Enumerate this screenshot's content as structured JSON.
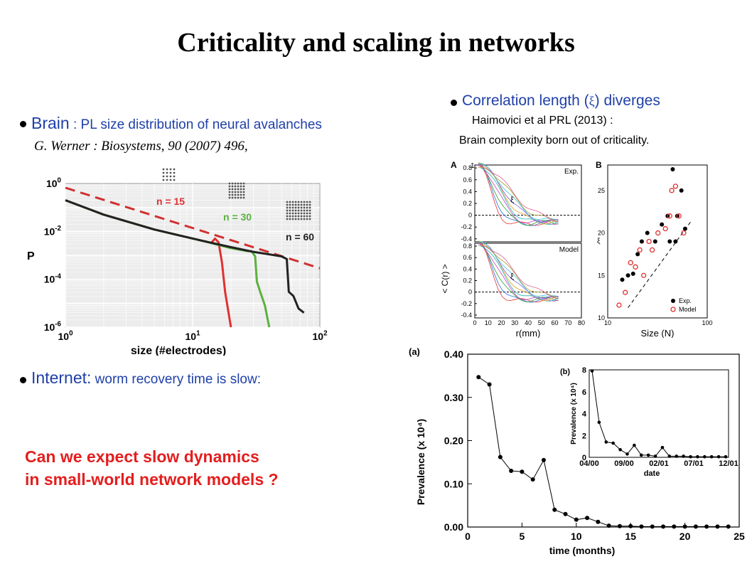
{
  "slide": {
    "title": "Criticality and scaling in networks",
    "brain": {
      "label": "Brain",
      "separator": " :  ",
      "text": "PL size distribution of neural avalanches",
      "citation": "G. Werner : Biosystems, 90 (2007) 496,"
    },
    "correlation": {
      "text_before": "Correlation length (",
      "symbol": "ξ",
      "text_after": ") diverges",
      "citation_line1": "Haimovici et al  PRL (2013) :",
      "citation_line2": "Brain complexity born out of criticality."
    },
    "internet": {
      "label": "Internet:",
      "text": " worm recovery time is slow:"
    },
    "question_line1": "Can we expect slow dynamics",
    "question_line2": "in small-world network models ?",
    "colors": {
      "bullet_text": "#1f3fa8",
      "question": "#e41e1e",
      "title": "#000000"
    }
  },
  "chart_data": [
    {
      "type": "line",
      "id": "avalanche-chart",
      "xlabel": "size (#electrodes)",
      "ylabel": "P",
      "x_scale": "log",
      "y_scale": "log",
      "xlim": [
        1,
        100
      ],
      "ylim": [
        1e-06,
        1
      ],
      "x_ticks": [
        {
          "base": "10",
          "exp": "0"
        },
        {
          "base": "10",
          "exp": "1"
        },
        {
          "base": "10",
          "exp": "2"
        }
      ],
      "y_ticks": [
        {
          "base": "10",
          "exp": "0"
        },
        {
          "base": "10",
          "exp": "-2"
        },
        {
          "base": "10",
          "exp": "-4"
        },
        {
          "base": "10",
          "exp": "-6"
        }
      ],
      "grid": true,
      "series": [
        {
          "name": "n = 15",
          "color": "#e03030",
          "points": [
            [
              1,
              0.2
            ],
            [
              2,
              0.05
            ],
            [
              5,
              0.012
            ],
            [
              12,
              0.004
            ],
            [
              14,
              0.0033
            ],
            [
              15,
              0.005
            ],
            [
              16,
              0.0035
            ],
            [
              17,
              0.0005
            ],
            [
              18,
              3e-05
            ],
            [
              20,
              1e-06
            ]
          ]
        },
        {
          "name": "n = 30",
          "color": "#5cb040",
          "points": [
            [
              1,
              0.2
            ],
            [
              2,
              0.05
            ],
            [
              5,
              0.012
            ],
            [
              12,
              0.004
            ],
            [
              20,
              0.002
            ],
            [
              27,
              0.0015
            ],
            [
              29,
              0.0015
            ],
            [
              31,
              0.0009
            ],
            [
              32,
              8e-05
            ],
            [
              34,
              3e-05
            ],
            [
              37,
              8e-06
            ],
            [
              40,
              1e-06
            ]
          ]
        },
        {
          "name": "n = 60",
          "color": "#222222",
          "points": [
            [
              1,
              0.2
            ],
            [
              2,
              0.05
            ],
            [
              5,
              0.012
            ],
            [
              12,
              0.004
            ],
            [
              20,
              0.0022
            ],
            [
              30,
              0.0014
            ],
            [
              40,
              0.0011
            ],
            [
              50,
              0.0009
            ],
            [
              55,
              0.0007
            ],
            [
              57,
              3e-05
            ],
            [
              62,
              2e-05
            ],
            [
              68,
              6e-06
            ],
            [
              75,
              4e-06
            ]
          ]
        }
      ],
      "reference_line": {
        "style": "dashed",
        "color": "#d03030",
        "points": [
          [
            1,
            1
          ],
          [
            100,
            0.0005
          ]
        ]
      },
      "annotations": [
        "n = 15",
        "n = 30",
        "n = 60"
      ],
      "insets": [
        "n = 15 grid",
        "n = 30 grid",
        "n = 60 grid"
      ]
    },
    {
      "type": "line",
      "id": "correlation-chart",
      "panel_a": "A",
      "panel_b": "B",
      "xlabel": "r(mm)",
      "ylabel": "< C(r) >",
      "xlim": [
        0,
        80
      ],
      "ylim": [
        -0.4,
        1.0
      ],
      "x_ticks": [
        "0",
        "10",
        "20",
        "30",
        "40",
        "50",
        "60",
        "70",
        "80"
      ],
      "y_ticks_top": [
        "0.8",
        "0.6",
        "0.4",
        "0.2",
        "0",
        "-0.2",
        "-0.4"
      ],
      "y_ticks_bottom": [
        "0.8",
        "0.6",
        "0.4",
        "0.2",
        "0",
        "-0.2",
        "-0.4"
      ],
      "top_y_extra": "1",
      "legend_top": "Exp.",
      "legend_bottom": "Model",
      "xi_label": "ξ",
      "b_xlabel": "Size (N)",
      "b_ylabel": "ξ",
      "b_x_ticks": [
        "10",
        "100"
      ],
      "b_y_ticks": [
        "10",
        "15",
        "20",
        "25"
      ],
      "b_xlim": [
        10,
        100
      ],
      "b_ylim": [
        10,
        28
      ],
      "b_legend": [
        "Exp.",
        "Model"
      ],
      "b_exp": [
        [
          14,
          14.5
        ],
        [
          16,
          15
        ],
        [
          18,
          15.2
        ],
        [
          20,
          17.5
        ],
        [
          22,
          19
        ],
        [
          25,
          20
        ],
        [
          30,
          19
        ],
        [
          35,
          21
        ],
        [
          40,
          22
        ],
        [
          45,
          27.5
        ],
        [
          50,
          22
        ],
        [
          55,
          25
        ],
        [
          60,
          20.5
        ],
        [
          42,
          19
        ],
        [
          48,
          19
        ]
      ],
      "b_model": [
        [
          13,
          11.5
        ],
        [
          15,
          13
        ],
        [
          17,
          16.5
        ],
        [
          19,
          16
        ],
        [
          21,
          18
        ],
        [
          23,
          15
        ],
        [
          26,
          19
        ],
        [
          28,
          18
        ],
        [
          32,
          20
        ],
        [
          38,
          20.5
        ],
        [
          42,
          22
        ],
        [
          44,
          25
        ],
        [
          48,
          25.5
        ],
        [
          52,
          22
        ],
        [
          58,
          20
        ]
      ]
    },
    {
      "type": "line",
      "id": "prevalence-chart",
      "panel": "(a)",
      "xlabel": "time (months)",
      "ylabel": "Prevalence (x 10⁴)",
      "xlim": [
        0,
        25
      ],
      "ylim": [
        0,
        0.4
      ],
      "x_ticks": [
        "0",
        "5",
        "10",
        "15",
        "20",
        "25"
      ],
      "y_ticks": [
        "0.00",
        "0.10",
        "0.20",
        "0.30",
        "0.40"
      ],
      "x": [
        1,
        2,
        3,
        4,
        5,
        6,
        7,
        8,
        9,
        10,
        11,
        12,
        13,
        14,
        15,
        16,
        17,
        18,
        19,
        20,
        21,
        22,
        23,
        24
      ],
      "values": [
        0.347,
        0.33,
        0.162,
        0.13,
        0.128,
        0.11,
        0.155,
        0.04,
        0.03,
        0.017,
        0.021,
        0.012,
        0.003,
        0.002,
        0.002,
        0.001,
        0.001,
        0.001,
        0.001,
        0.001,
        0.001,
        0.001,
        0.001,
        0.001
      ],
      "inset": {
        "panel": "(b)",
        "xlabel": "date",
        "ylabel": "Prevalence (x 10⁴)",
        "x_ticks": [
          "04/00",
          "09/00",
          "02/01",
          "07/01",
          "12/01"
        ],
        "y_ticks": [
          "0",
          "2",
          "4",
          "6",
          "8"
        ],
        "ylim": [
          0,
          8
        ],
        "values": [
          7.9,
          3.2,
          1.4,
          1.3,
          0.7,
          0.3,
          1.1,
          0.2,
          0.2,
          0.1,
          0.9,
          0.1,
          0.1,
          0.1,
          0.05,
          0.05,
          0.05,
          0.05,
          0.05,
          0.05
        ]
      }
    }
  ]
}
